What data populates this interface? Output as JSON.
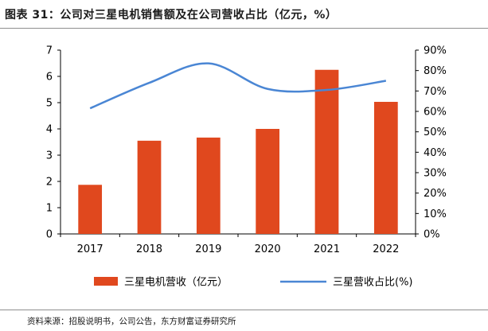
{
  "title": "图表 31：公司对三星电机销售额及在公司营收占比（亿元，%）",
  "source": "资料来源：招股说明书，公司公告，东方财富证券研究所",
  "chart_data": {
    "type": "bar",
    "categories": [
      "2017",
      "2018",
      "2019",
      "2020",
      "2021",
      "2022"
    ],
    "series": [
      {
        "name": "三星电机营收（亿元）",
        "type": "bar",
        "axis": "left",
        "color": "#E0481E",
        "values": [
          1.87,
          3.55,
          3.67,
          4.0,
          6.25,
          5.03
        ]
      },
      {
        "name": "三星营收占比(%)",
        "type": "line",
        "axis": "right",
        "color": "#4A86D4",
        "values": [
          61.5,
          74.0,
          83.5,
          71.0,
          70.5,
          75.0
        ]
      }
    ],
    "y_left": {
      "min": 0,
      "max": 7,
      "ticks": [
        "0",
        "1",
        "2",
        "3",
        "4",
        "5",
        "6",
        "7"
      ]
    },
    "y_right": {
      "min": 0,
      "max": 90,
      "ticks": [
        "0%",
        "10%",
        "20%",
        "30%",
        "40%",
        "50%",
        "60%",
        "70%",
        "80%",
        "90%"
      ]
    },
    "grid": false,
    "legend_position": "bottom"
  }
}
